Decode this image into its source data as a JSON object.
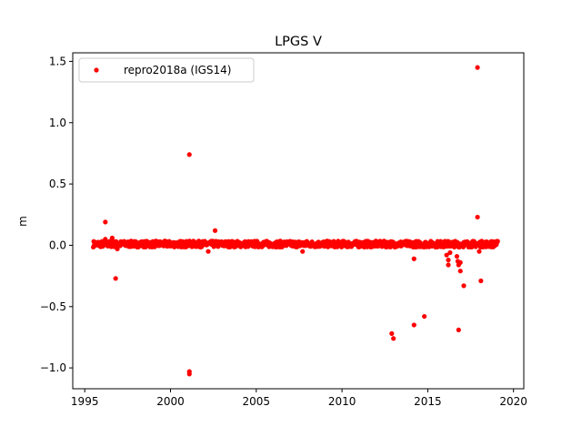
{
  "chart_data": {
    "type": "scatter",
    "title": "LPGS V",
    "xlabel": "",
    "ylabel": "m",
    "xlim": [
      1994.3,
      2020.6
    ],
    "ylim": [
      -1.17,
      1.57
    ],
    "xticks": [
      1995,
      2000,
      2005,
      2010,
      2015,
      2020
    ],
    "xtick_labels": [
      "1995",
      "2000",
      "2005",
      "2010",
      "2015",
      "2020"
    ],
    "yticks": [
      1.5,
      1.0,
      0.5,
      0.0,
      -0.5,
      -1.0
    ],
    "ytick_labels": [
      "1.5",
      "1.0",
      "0.5",
      "0.0",
      "−0.5",
      "−1.0"
    ],
    "grid": false,
    "legend_position": "top-left",
    "series": [
      {
        "name": "repro2018a (IGS14)",
        "color": "#ff0000",
        "marker": "circle",
        "dense_band": {
          "x_start": 1995.5,
          "x_end": 2019.1,
          "y_center": 0.01,
          "y_spread": 0.025
        },
        "points": [
          {
            "x": 1996.2,
            "y": 0.19
          },
          {
            "x": 1996.2,
            "y": 0.05
          },
          {
            "x": 1996.6,
            "y": 0.06
          },
          {
            "x": 1996.8,
            "y": -0.27
          },
          {
            "x": 1996.9,
            "y": -0.03
          },
          {
            "x": 2001.1,
            "y": 0.74
          },
          {
            "x": 2001.1,
            "y": -1.03
          },
          {
            "x": 2001.1,
            "y": -1.05
          },
          {
            "x": 2002.2,
            "y": -0.05
          },
          {
            "x": 2002.6,
            "y": 0.12
          },
          {
            "x": 2007.7,
            "y": -0.05
          },
          {
            "x": 2012.9,
            "y": -0.72
          },
          {
            "x": 2013.0,
            "y": -0.76
          },
          {
            "x": 2014.2,
            "y": -0.11
          },
          {
            "x": 2014.2,
            "y": -0.65
          },
          {
            "x": 2014.8,
            "y": -0.58
          },
          {
            "x": 2016.1,
            "y": -0.08
          },
          {
            "x": 2016.2,
            "y": -0.12
          },
          {
            "x": 2016.2,
            "y": -0.16
          },
          {
            "x": 2016.3,
            "y": -0.06
          },
          {
            "x": 2016.7,
            "y": -0.09
          },
          {
            "x": 2016.75,
            "y": -0.13
          },
          {
            "x": 2016.8,
            "y": -0.16
          },
          {
            "x": 2016.8,
            "y": -0.69
          },
          {
            "x": 2016.9,
            "y": -0.21
          },
          {
            "x": 2016.9,
            "y": -0.14
          },
          {
            "x": 2017.1,
            "y": -0.33
          },
          {
            "x": 2017.9,
            "y": 1.45
          },
          {
            "x": 2017.9,
            "y": 0.23
          },
          {
            "x": 2018.1,
            "y": -0.29
          },
          {
            "x": 2018.0,
            "y": -0.05
          }
        ]
      }
    ]
  }
}
